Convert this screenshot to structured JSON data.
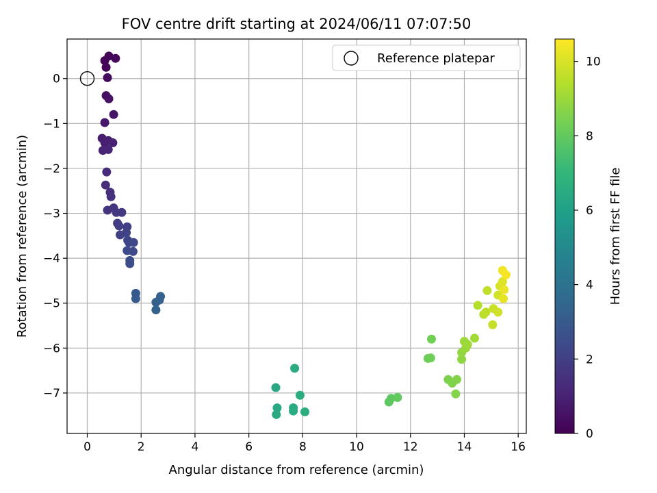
{
  "chart_data": {
    "type": "scatter",
    "title": "FOV centre drift starting at 2024/06/11 07:07:50",
    "xlabel": "Angular distance from reference (arcmin)",
    "ylabel": "Rotation from reference (arcmin)",
    "xlim": [
      -0.75,
      16.3
    ],
    "ylim": [
      -7.9,
      0.88
    ],
    "xticks": [
      0,
      2,
      4,
      6,
      8,
      10,
      12,
      14,
      16
    ],
    "yticks": [
      0,
      -1,
      -2,
      -3,
      -4,
      -5,
      -6,
      -7
    ],
    "grid": true,
    "legend": {
      "position": "top-right",
      "label": "Reference platepar"
    },
    "reference": {
      "x": 0,
      "y": 0
    },
    "colorbar": {
      "label": "Hours from first FF file",
      "min": 0,
      "max": 10.6,
      "ticks": [
        0,
        2,
        4,
        6,
        8,
        10
      ],
      "colormap": [
        "#440154",
        "#482878",
        "#3e4989",
        "#31688e",
        "#26828e",
        "#1f9e89",
        "#35b779",
        "#6ece58",
        "#b5de2b",
        "#fde725"
      ]
    },
    "points": [
      {
        "x": 0.65,
        "y": 0.4,
        "t": 0.05
      },
      {
        "x": 0.8,
        "y": 0.5,
        "t": 0.1
      },
      {
        "x": 0.7,
        "y": 0.25,
        "t": 0.15
      },
      {
        "x": 1.05,
        "y": 0.45,
        "t": 0.2
      },
      {
        "x": 0.75,
        "y": 0.02,
        "t": 0.3
      },
      {
        "x": 0.7,
        "y": -0.38,
        "t": 0.4
      },
      {
        "x": 0.8,
        "y": -0.45,
        "t": 0.5
      },
      {
        "x": 0.98,
        "y": -0.8,
        "t": 0.6
      },
      {
        "x": 0.65,
        "y": -0.98,
        "t": 0.7
      },
      {
        "x": 0.55,
        "y": -1.33,
        "t": 0.85
      },
      {
        "x": 0.65,
        "y": -1.43,
        "t": 0.9
      },
      {
        "x": 0.78,
        "y": -1.38,
        "t": 0.95
      },
      {
        "x": 0.95,
        "y": -1.43,
        "t": 1.0
      },
      {
        "x": 0.58,
        "y": -1.6,
        "t": 1.05
      },
      {
        "x": 0.78,
        "y": -1.58,
        "t": 1.1
      },
      {
        "x": 0.72,
        "y": -2.08,
        "t": 1.25
      },
      {
        "x": 0.68,
        "y": -2.37,
        "t": 1.35
      },
      {
        "x": 0.85,
        "y": -2.53,
        "t": 1.45
      },
      {
        "x": 0.88,
        "y": -2.63,
        "t": 1.5
      },
      {
        "x": 0.75,
        "y": -2.93,
        "t": 1.6
      },
      {
        "x": 0.98,
        "y": -2.88,
        "t": 1.65
      },
      {
        "x": 1.08,
        "y": -2.98,
        "t": 1.7
      },
      {
        "x": 1.28,
        "y": -2.98,
        "t": 1.8
      },
      {
        "x": 1.12,
        "y": -3.22,
        "t": 1.9
      },
      {
        "x": 1.18,
        "y": -3.28,
        "t": 1.95
      },
      {
        "x": 1.48,
        "y": -3.3,
        "t": 2.0
      },
      {
        "x": 1.22,
        "y": -3.48,
        "t": 2.05
      },
      {
        "x": 1.45,
        "y": -3.43,
        "t": 2.1
      },
      {
        "x": 1.5,
        "y": -3.6,
        "t": 2.2
      },
      {
        "x": 1.55,
        "y": -3.65,
        "t": 2.25
      },
      {
        "x": 1.72,
        "y": -3.65,
        "t": 2.3
      },
      {
        "x": 1.48,
        "y": -3.83,
        "t": 2.35
      },
      {
        "x": 1.7,
        "y": -3.85,
        "t": 2.4
      },
      {
        "x": 1.58,
        "y": -4.05,
        "t": 2.5
      },
      {
        "x": 1.58,
        "y": -4.12,
        "t": 2.55
      },
      {
        "x": 1.8,
        "y": -4.78,
        "t": 3.0
      },
      {
        "x": 1.8,
        "y": -4.9,
        "t": 3.05
      },
      {
        "x": 2.55,
        "y": -4.98,
        "t": 3.2
      },
      {
        "x": 2.68,
        "y": -4.93,
        "t": 3.25
      },
      {
        "x": 2.72,
        "y": -4.85,
        "t": 3.3
      },
      {
        "x": 2.55,
        "y": -5.15,
        "t": 3.35
      },
      {
        "x": 7.0,
        "y": -6.88,
        "t": 6.3
      },
      {
        "x": 7.05,
        "y": -7.33,
        "t": 6.35
      },
      {
        "x": 7.02,
        "y": -7.48,
        "t": 6.4
      },
      {
        "x": 7.65,
        "y": -7.33,
        "t": 6.45
      },
      {
        "x": 7.65,
        "y": -7.4,
        "t": 6.5
      },
      {
        "x": 7.7,
        "y": -6.45,
        "t": 6.55
      },
      {
        "x": 7.9,
        "y": -7.05,
        "t": 6.6
      },
      {
        "x": 8.08,
        "y": -7.42,
        "t": 6.65
      },
      {
        "x": 11.2,
        "y": -7.2,
        "t": 7.9
      },
      {
        "x": 11.28,
        "y": -7.12,
        "t": 7.95
      },
      {
        "x": 11.52,
        "y": -7.1,
        "t": 8.0
      },
      {
        "x": 12.65,
        "y": -6.23,
        "t": 8.2
      },
      {
        "x": 12.75,
        "y": -6.22,
        "t": 8.25
      },
      {
        "x": 12.78,
        "y": -5.8,
        "t": 8.3
      },
      {
        "x": 13.4,
        "y": -6.7,
        "t": 8.5
      },
      {
        "x": 13.55,
        "y": -6.78,
        "t": 8.55
      },
      {
        "x": 13.72,
        "y": -6.7,
        "t": 8.6
      },
      {
        "x": 13.68,
        "y": -7.02,
        "t": 8.62
      },
      {
        "x": 13.9,
        "y": -6.25,
        "t": 8.8
      },
      {
        "x": 13.9,
        "y": -6.1,
        "t": 8.85
      },
      {
        "x": 14.05,
        "y": -6.0,
        "t": 8.95
      },
      {
        "x": 14.0,
        "y": -5.85,
        "t": 9.0
      },
      {
        "x": 14.12,
        "y": -5.92,
        "t": 9.05
      },
      {
        "x": 14.38,
        "y": -5.78,
        "t": 9.1
      },
      {
        "x": 14.5,
        "y": -5.05,
        "t": 9.4
      },
      {
        "x": 14.72,
        "y": -5.25,
        "t": 9.5
      },
      {
        "x": 14.8,
        "y": -5.2,
        "t": 9.55
      },
      {
        "x": 14.85,
        "y": -4.72,
        "t": 9.6
      },
      {
        "x": 15.05,
        "y": -5.48,
        "t": 9.7
      },
      {
        "x": 15.08,
        "y": -5.12,
        "t": 9.75
      },
      {
        "x": 15.25,
        "y": -5.2,
        "t": 9.85
      },
      {
        "x": 15.25,
        "y": -4.82,
        "t": 9.9
      },
      {
        "x": 15.32,
        "y": -4.62,
        "t": 10.0
      },
      {
        "x": 15.42,
        "y": -4.52,
        "t": 10.1
      },
      {
        "x": 15.45,
        "y": -4.9,
        "t": 10.2
      },
      {
        "x": 15.48,
        "y": -4.7,
        "t": 10.3
      },
      {
        "x": 15.42,
        "y": -4.27,
        "t": 10.4
      },
      {
        "x": 15.55,
        "y": -4.37,
        "t": 10.5
      }
    ]
  }
}
